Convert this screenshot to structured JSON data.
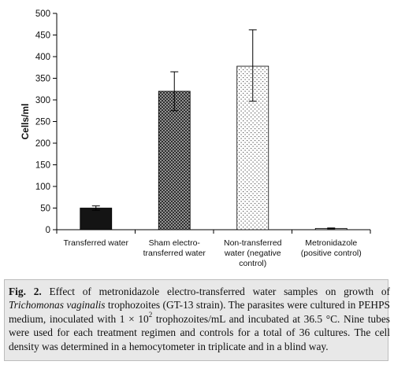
{
  "chart_data": {
    "type": "bar",
    "ylabel": "Cells/ml",
    "xlabel": "",
    "ylim": [
      0,
      500
    ],
    "yticks": [
      0,
      50,
      100,
      150,
      200,
      250,
      300,
      350,
      400,
      450,
      500
    ],
    "grid": false,
    "categories": [
      [
        "Transferred water"
      ],
      [
        "Sham electro-",
        "transferred water"
      ],
      [
        "Non-transferred",
        "water (negative",
        "control)"
      ],
      [
        "Metronidazole",
        "(positive control)"
      ]
    ],
    "values": [
      50,
      320,
      378,
      3
    ],
    "error_bars": [
      {
        "low": 45,
        "high": 55
      },
      {
        "low": 275,
        "high": 365
      },
      {
        "low": 297,
        "high": 462
      },
      {
        "low": 2,
        "high": 4
      }
    ],
    "bar_fills": [
      "solid-black",
      "dark-crosshatch",
      "light-dots",
      "gray-light"
    ]
  },
  "caption": {
    "fig_label": "Fig. 2.",
    "text1": " Effect of metronidazole electro-transferred water samples on growth of ",
    "species": "Trichomonas vaginalis",
    "text2": " trophozoites (GT-13 strain). The parasites were cultured in PEHPS medium, inoculated with 1 × 10",
    "exponent": "2",
    "text3": " trophozoites/mL and incubated at 36.5 °C. Nine tubes were used for each treatment regimen and controls for a total of 36 cultures. The cell density was determined in a hemocytometer in triplicate and in a blind way."
  }
}
